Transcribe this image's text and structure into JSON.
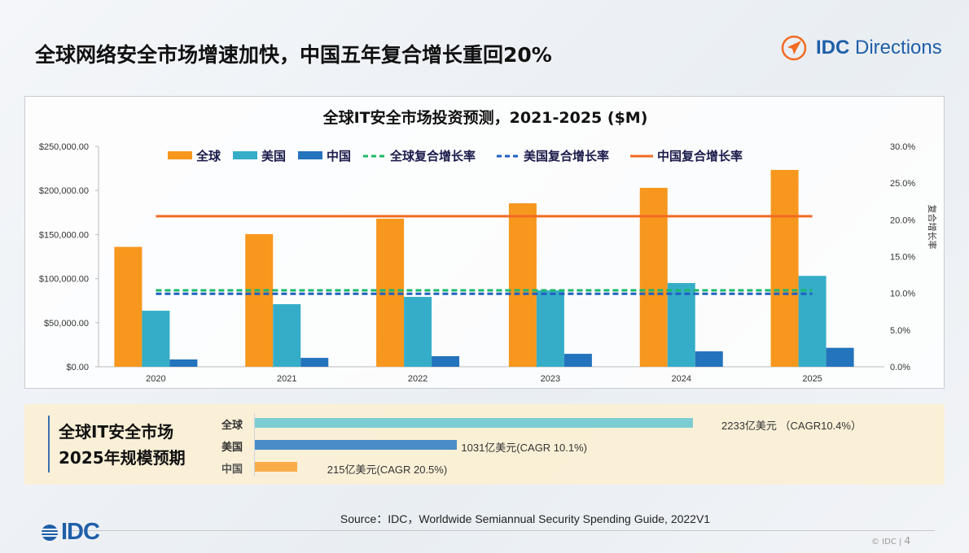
{
  "slide_title": "全球网络安全市场增速加快，中国五年复合增长重回20%",
  "logo": {
    "brand": "IDC",
    "product": "Directions",
    "color": "#1f5fa8",
    "icon_color": "#f26b21"
  },
  "chart_data": {
    "type": "bar",
    "title": "全球IT安全市场投资预测，2021-2025 ($M)",
    "categories": [
      "2020",
      "2021",
      "2022",
      "2023",
      "2024",
      "2025"
    ],
    "series": [
      {
        "name": "全球",
        "color": "#f7971e",
        "values": [
          136000,
          150500,
          168000,
          185500,
          203000,
          223300
        ]
      },
      {
        "name": "美国",
        "color": "#36adc8",
        "values": [
          63600,
          71000,
          79300,
          86700,
          95000,
          103100
        ]
      },
      {
        "name": "中国",
        "color": "#2473bd",
        "values": [
          8300,
          10100,
          12000,
          14700,
          17500,
          21500
        ]
      }
    ],
    "lines": [
      {
        "name": "全球复合增长率",
        "color": "#1db86a",
        "style": "dashed",
        "value": 10.4
      },
      {
        "name": "美国复合增长率",
        "color": "#1f5fc0",
        "style": "dashed",
        "value": 10.1
      },
      {
        "name": "中国复合增长率",
        "color": "#f26b21",
        "style": "solid",
        "value": 20.5
      }
    ],
    "ylim": [
      0,
      250000
    ],
    "yticks": [
      "$0.00",
      "$50,000.00",
      "$100,000.00",
      "$150,000.00",
      "$200,000.00",
      "$250,000.00"
    ],
    "y2lim": [
      0,
      30
    ],
    "y2ticks": [
      "0.0%",
      "5.0%",
      "10.0%",
      "15.0%",
      "20.0%",
      "25.0%",
      "30.0%"
    ],
    "y2label": "复合增长率",
    "legend": "top",
    "grid": false
  },
  "summary": {
    "heading_line1": "全球IT安全市场",
    "heading_line2": "2025年规模预期",
    "rows": [
      {
        "label": "全球",
        "value": 2233,
        "text": "2233亿美元 （CAGR10.4%）",
        "color": "#7ccdd3"
      },
      {
        "label": "美国",
        "value": 1031,
        "text": "1031亿美元(CAGR 10.1%)",
        "color": "#4a8cc7"
      },
      {
        "label": "中国",
        "value": 215,
        "text": "215亿美元(CAGR 20.5%)",
        "color": "#f9ad4a"
      }
    ]
  },
  "source": "Source：IDC，Worldwide Semiannual Security Spending Guide, 2022V1",
  "footer": {
    "logo": "IDC",
    "copyright": "© IDC |",
    "page": "4"
  }
}
